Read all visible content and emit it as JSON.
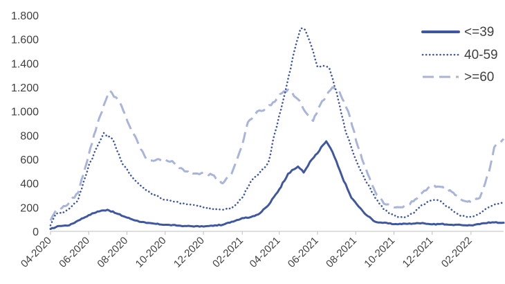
{
  "chart_data": {
    "type": "line",
    "title": "",
    "xlabel": "",
    "ylabel": "",
    "ylim": [
      0,
      1800
    ],
    "yticks": [
      0,
      200,
      400,
      600,
      800,
      1000,
      1200,
      1400,
      1600,
      1800
    ],
    "ytick_labels": [
      "0",
      "200",
      "400",
      "600",
      "800",
      "1.000",
      "1.200",
      "1.400",
      "1.600",
      "1.800"
    ],
    "x_axis": {
      "type": "time",
      "min": "2020-04-01",
      "max": "2022-03-25"
    },
    "xtick_labels": [
      {
        "date": "2020-04-01",
        "label": "04-2020"
      },
      {
        "date": "2020-06-01",
        "label": "06-2020"
      },
      {
        "date": "2020-08-01",
        "label": "08-2020"
      },
      {
        "date": "2020-10-01",
        "label": "10-2020"
      },
      {
        "date": "2020-12-01",
        "label": "12-2020"
      },
      {
        "date": "2021-02-01",
        "label": "02-2021"
      },
      {
        "date": "2021-04-01",
        "label": "04-2021"
      },
      {
        "date": "2021-06-01",
        "label": "06-2021"
      },
      {
        "date": "2021-08-01",
        "label": "08-2021"
      },
      {
        "date": "2021-10-01",
        "label": "10-2021"
      },
      {
        "date": "2021-12-01",
        "label": "12-2021"
      },
      {
        "date": "2022-02-01",
        "label": "02-2022"
      }
    ],
    "grid": false,
    "legend_position": "top-right",
    "series": [
      {
        "name": "<=39",
        "style": "solid",
        "color": "#3f57a0",
        "points": [
          [
            "2020-04-01",
            20
          ],
          [
            "2020-04-15",
            45
          ],
          [
            "2020-05-01",
            50
          ],
          [
            "2020-05-15",
            90
          ],
          [
            "2020-06-01",
            135
          ],
          [
            "2020-06-15",
            165
          ],
          [
            "2020-07-01",
            180
          ],
          [
            "2020-07-15",
            150
          ],
          [
            "2020-08-01",
            115
          ],
          [
            "2020-08-15",
            90
          ],
          [
            "2020-09-01",
            70
          ],
          [
            "2020-10-01",
            55
          ],
          [
            "2020-11-01",
            45
          ],
          [
            "2020-12-01",
            40
          ],
          [
            "2021-01-01",
            55
          ],
          [
            "2021-01-15",
            80
          ],
          [
            "2021-02-01",
            110
          ],
          [
            "2021-02-15",
            120
          ],
          [
            "2021-03-01",
            150
          ],
          [
            "2021-03-15",
            220
          ],
          [
            "2021-04-01",
            350
          ],
          [
            "2021-04-15",
            480
          ],
          [
            "2021-05-01",
            540
          ],
          [
            "2021-05-10",
            490
          ],
          [
            "2021-05-20",
            580
          ],
          [
            "2021-06-01",
            650
          ],
          [
            "2021-06-10",
            720
          ],
          [
            "2021-06-15",
            750
          ],
          [
            "2021-06-25",
            660
          ],
          [
            "2021-07-10",
            460
          ],
          [
            "2021-07-25",
            280
          ],
          [
            "2021-08-15",
            150
          ],
          [
            "2021-09-01",
            80
          ],
          [
            "2021-10-01",
            60
          ],
          [
            "2021-11-01",
            65
          ],
          [
            "2021-11-15",
            70
          ],
          [
            "2021-12-01",
            58
          ],
          [
            "2021-12-15",
            62
          ],
          [
            "2022-01-01",
            55
          ],
          [
            "2022-02-01",
            50
          ],
          [
            "2022-02-15",
            60
          ],
          [
            "2022-03-01",
            75
          ],
          [
            "2022-03-25",
            72
          ]
        ]
      },
      {
        "name": "40-59",
        "style": "dotted",
        "color": "#3f57a0",
        "points": [
          [
            "2020-04-01",
            50
          ],
          [
            "2020-04-10",
            150
          ],
          [
            "2020-04-25",
            165
          ],
          [
            "2020-05-15",
            260
          ],
          [
            "2020-06-01",
            550
          ],
          [
            "2020-06-15",
            710
          ],
          [
            "2020-06-25",
            820
          ],
          [
            "2020-07-10",
            760
          ],
          [
            "2020-07-25",
            560
          ],
          [
            "2020-08-15",
            420
          ],
          [
            "2020-09-01",
            340
          ],
          [
            "2020-10-01",
            260
          ],
          [
            "2020-11-01",
            230
          ],
          [
            "2020-11-15",
            220
          ],
          [
            "2020-12-01",
            200
          ],
          [
            "2020-12-15",
            190
          ],
          [
            "2021-01-01",
            180
          ],
          [
            "2021-01-15",
            190
          ],
          [
            "2021-02-01",
            280
          ],
          [
            "2021-02-15",
            420
          ],
          [
            "2021-03-01",
            490
          ],
          [
            "2021-03-15",
            580
          ],
          [
            "2021-03-25",
            820
          ],
          [
            "2021-04-10",
            1150
          ],
          [
            "2021-04-25",
            1500
          ],
          [
            "2021-05-05",
            1690
          ],
          [
            "2021-05-12",
            1680
          ],
          [
            "2021-05-25",
            1500
          ],
          [
            "2021-06-01",
            1370
          ],
          [
            "2021-06-10",
            1380
          ],
          [
            "2021-06-20",
            1360
          ],
          [
            "2021-07-01",
            1170
          ],
          [
            "2021-07-15",
            850
          ],
          [
            "2021-08-01",
            600
          ],
          [
            "2021-08-15",
            440
          ],
          [
            "2021-09-01",
            280
          ],
          [
            "2021-09-15",
            180
          ],
          [
            "2021-10-01",
            130
          ],
          [
            "2021-10-15",
            115
          ],
          [
            "2021-11-01",
            150
          ],
          [
            "2021-11-15",
            220
          ],
          [
            "2021-12-01",
            260
          ],
          [
            "2021-12-15",
            250
          ],
          [
            "2022-01-01",
            180
          ],
          [
            "2022-01-15",
            130
          ],
          [
            "2022-02-01",
            120
          ],
          [
            "2022-02-15",
            150
          ],
          [
            "2022-03-01",
            200
          ],
          [
            "2022-03-25",
            250
          ]
        ]
      },
      {
        "name": ">=60",
        "style": "dashed",
        "color": "#a8b4da",
        "points": [
          [
            "2020-04-01",
            90
          ],
          [
            "2020-04-10",
            180
          ],
          [
            "2020-04-25",
            210
          ],
          [
            "2020-05-15",
            320
          ],
          [
            "2020-06-01",
            640
          ],
          [
            "2020-06-15",
            900
          ],
          [
            "2020-06-25",
            1050
          ],
          [
            "2020-07-05",
            1170
          ],
          [
            "2020-07-20",
            1080
          ],
          [
            "2020-08-05",
            880
          ],
          [
            "2020-08-20",
            720
          ],
          [
            "2020-09-01",
            600
          ],
          [
            "2020-09-15",
            590
          ],
          [
            "2020-10-01",
            600
          ],
          [
            "2020-10-15",
            570
          ],
          [
            "2020-11-01",
            500
          ],
          [
            "2020-11-15",
            480
          ],
          [
            "2020-12-01",
            490
          ],
          [
            "2020-12-15",
            470
          ],
          [
            "2021-01-01",
            400
          ],
          [
            "2021-01-15",
            480
          ],
          [
            "2021-02-01",
            720
          ],
          [
            "2021-02-10",
            910
          ],
          [
            "2021-02-25",
            1000
          ],
          [
            "2021-03-10",
            1020
          ],
          [
            "2021-03-25",
            1080
          ],
          [
            "2021-04-05",
            1150
          ],
          [
            "2021-04-15",
            1180
          ],
          [
            "2021-05-01",
            1100
          ],
          [
            "2021-05-15",
            980
          ],
          [
            "2021-05-25",
            920
          ],
          [
            "2021-06-05",
            1050
          ],
          [
            "2021-06-15",
            1130
          ],
          [
            "2021-06-25",
            1200
          ],
          [
            "2021-07-05",
            1180
          ],
          [
            "2021-07-20",
            1000
          ],
          [
            "2021-08-05",
            700
          ],
          [
            "2021-08-20",
            480
          ],
          [
            "2021-09-01",
            330
          ],
          [
            "2021-09-15",
            230
          ],
          [
            "2021-10-01",
            200
          ],
          [
            "2021-10-15",
            200
          ],
          [
            "2021-11-01",
            250
          ],
          [
            "2021-11-15",
            320
          ],
          [
            "2021-12-01",
            380
          ],
          [
            "2021-12-15",
            370
          ],
          [
            "2022-01-01",
            330
          ],
          [
            "2022-01-15",
            270
          ],
          [
            "2022-02-01",
            240
          ],
          [
            "2022-02-15",
            280
          ],
          [
            "2022-03-01",
            480
          ],
          [
            "2022-03-10",
            700
          ],
          [
            "2022-03-25",
            770
          ]
        ]
      }
    ]
  }
}
